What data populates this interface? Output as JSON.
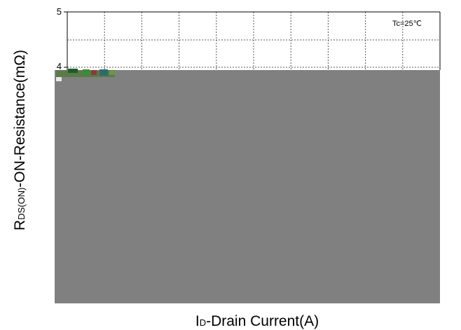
{
  "chart_data": {
    "type": "line",
    "ytick_labels": [
      "5",
      "4"
    ],
    "annotation": "Tc=25℃",
    "xlabel": {
      "main_prefix": "I",
      "sub": "D",
      "main_suffix": "-Drain Current(A)"
    },
    "ylabel": {
      "main_prefix": "R",
      "sub": "DS(ON)",
      "main_suffix": "-ON-Resistance(mΩ)"
    },
    "series": [],
    "grid": true,
    "colors": {
      "overlay": "#808080",
      "grid": "#555555",
      "frame": "#000000"
    }
  }
}
